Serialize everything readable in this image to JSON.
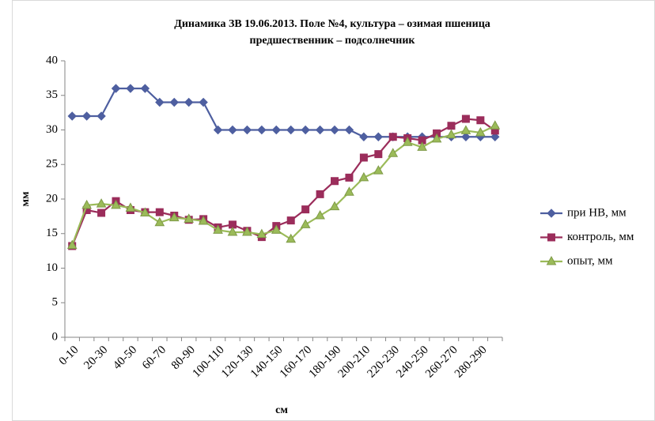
{
  "chart_data": {
    "type": "line",
    "title": [
      "Динамика ЗВ 19.06.2013. Поле №4, культура – озимая пшеница",
      "предшественник – подсолнечник"
    ],
    "x_label": "см",
    "y_label": "мм",
    "categories": [
      "0-10",
      null,
      "20-30",
      null,
      "40-50",
      null,
      "60-70",
      null,
      "80-90",
      null,
      "100-110",
      null,
      "120-130",
      null,
      "140-150",
      null,
      "160-170",
      null,
      "180-190",
      null,
      "200-210",
      null,
      "220-230",
      null,
      "240-250",
      null,
      "260-270",
      null,
      "280-290",
      null
    ],
    "series": [
      {
        "name": "при НВ, мм",
        "color": "#4e5fa0",
        "marker": "diamond",
        "values": [
          32,
          32,
          32,
          36,
          36,
          36,
          34,
          34,
          34,
          34,
          30,
          30,
          30,
          30,
          30,
          30,
          30,
          30,
          30,
          30,
          29,
          29,
          29,
          29,
          29,
          29,
          29,
          29,
          29,
          29
        ]
      },
      {
        "name": "контроль, мм",
        "color": "#9b2d5b",
        "marker": "square",
        "values": [
          13.2,
          18.4,
          18,
          19.7,
          18.4,
          18.1,
          18.1,
          17.6,
          17,
          17.1,
          15.9,
          16.3,
          15.4,
          14.5,
          16.1,
          16.9,
          18.5,
          20.7,
          22.6,
          23.1,
          26,
          26.5,
          29,
          28.8,
          28.5,
          29.5,
          30.6,
          31.6,
          31.4,
          29.9
        ]
      },
      {
        "name": "опыт, мм",
        "color": "#9bbb59",
        "marker": "triangle",
        "values": [
          13.3,
          19.1,
          19.3,
          19.1,
          18.7,
          18,
          16.6,
          17.3,
          17.1,
          16.8,
          15.5,
          15.2,
          15.2,
          14.9,
          15.5,
          14.2,
          16.3,
          17.6,
          18.9,
          21,
          23.1,
          24.1,
          26.6,
          28.2,
          27.5,
          28.7,
          29.3,
          29.9,
          29.6,
          30.6
        ]
      }
    ],
    "ylim": [
      0,
      40
    ],
    "yticks": [
      0,
      5,
      10,
      15,
      20,
      25,
      30,
      35,
      40
    ],
    "grid": false,
    "legend": "right"
  }
}
